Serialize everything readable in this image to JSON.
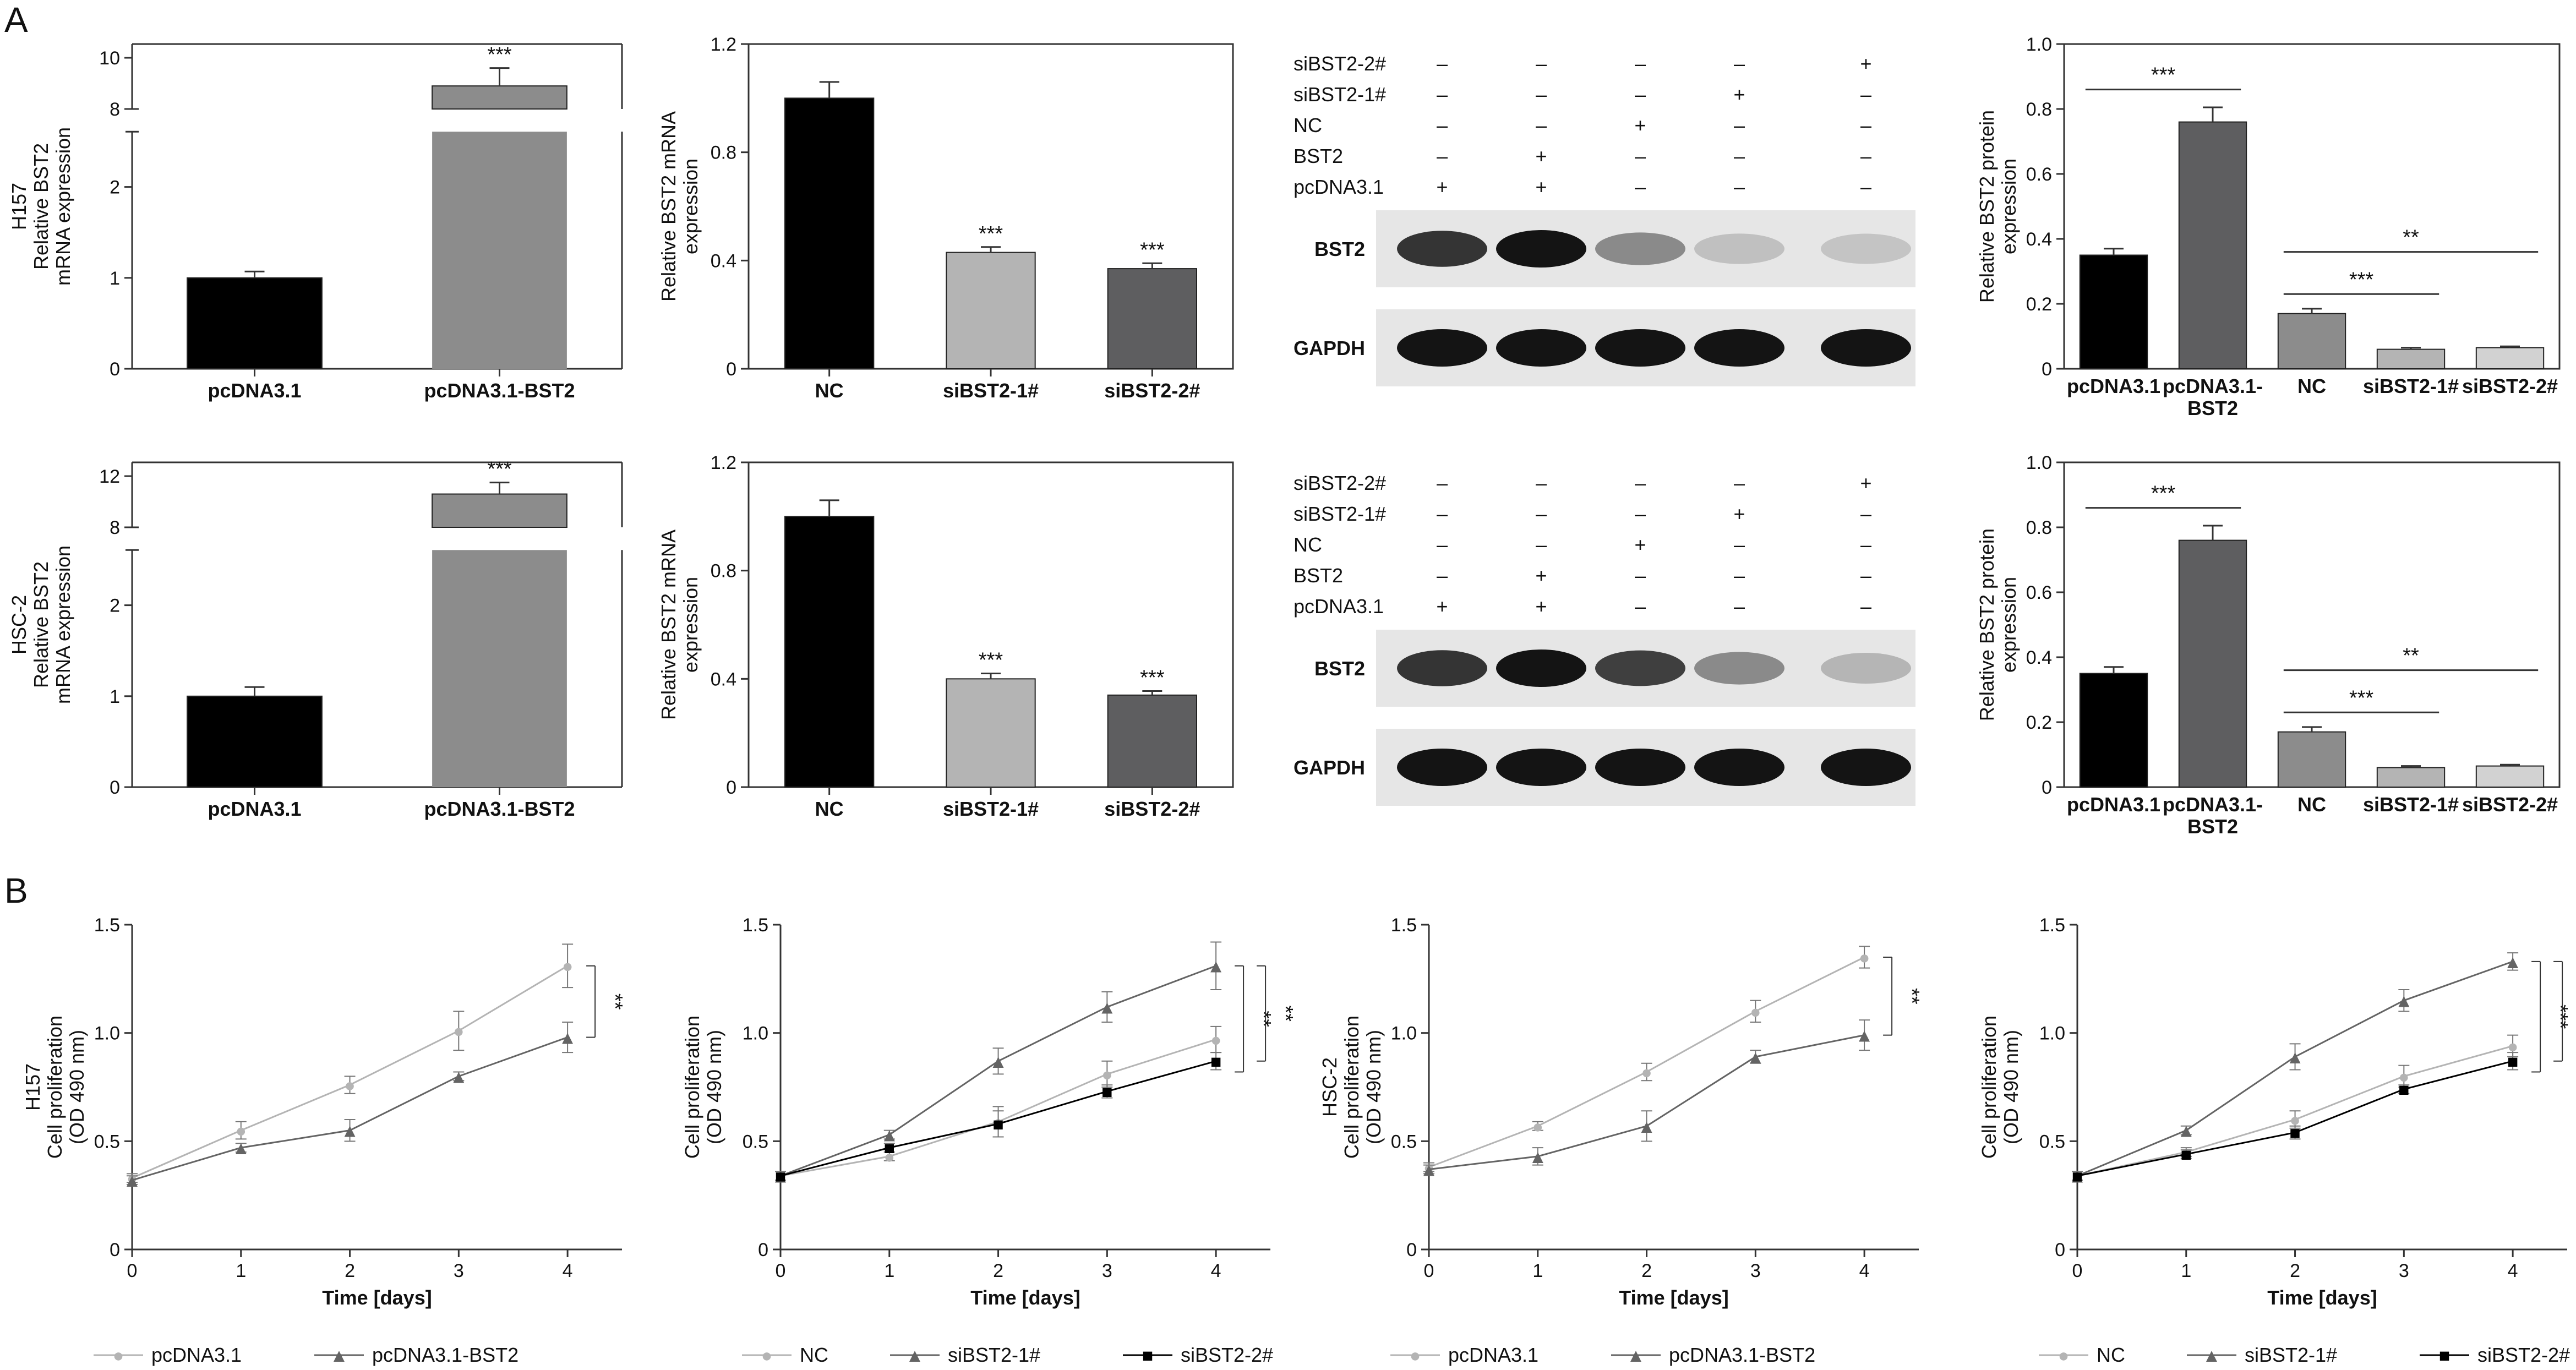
{
  "panel_labels": [
    "A",
    "B"
  ],
  "chart_data": [
    {
      "id": "a1",
      "type": "bar",
      "ylabel_lines": [
        "H157",
        "Relative BST2",
        "mRNA expression"
      ],
      "categories": [
        "pcDNA3.1",
        "pcDNA3.1-BST2"
      ],
      "values": [
        1.0,
        8.9
      ],
      "errors": [
        0.07,
        0.7
      ],
      "colors": [
        "#000000",
        "#8c8c8c"
      ],
      "yticks": [
        "0",
        "1",
        "2",
        "8",
        "10"
      ],
      "axis_break": true,
      "annotations": [
        {
          "bar": 1,
          "text": "***"
        }
      ]
    },
    {
      "id": "a2",
      "type": "bar",
      "ylabel_lines": [
        "Relative BST2 mRNA",
        "expression"
      ],
      "categories": [
        "NC",
        "siBST2-1#",
        "siBST2-2#"
      ],
      "values": [
        1.0,
        0.43,
        0.37
      ],
      "errors": [
        0.06,
        0.02,
        0.02
      ],
      "colors": [
        "#000000",
        "#b4b4b4",
        "#5e5e60"
      ],
      "yticks": [
        "0",
        "0.4",
        "0.8",
        "1.2"
      ],
      "ylim": [
        0,
        1.2
      ],
      "annotations": [
        {
          "bar": 1,
          "text": "***"
        },
        {
          "bar": 2,
          "text": "***"
        }
      ]
    },
    {
      "id": "a3",
      "type": "bar",
      "ylabel_lines": [
        "Relative BST2 protein",
        "expression"
      ],
      "categories": [
        "pcDNA3.1",
        "pcDNA3.1-\nBST2",
        "NC",
        "siBST2-1#",
        "siBST2-2#"
      ],
      "values": [
        0.35,
        0.76,
        0.17,
        0.06,
        0.065
      ],
      "errors": [
        0.02,
        0.045,
        0.015,
        0.005,
        0.004
      ],
      "colors": [
        "#000000",
        "#5e5e60",
        "#8c8c8c",
        "#b4b4b4",
        "#d2d2d2"
      ],
      "yticks": [
        "0",
        "0.2",
        "0.4",
        "0.6",
        "0.8",
        "1.0"
      ],
      "ylim": [
        0,
        1.0
      ],
      "brackets": [
        {
          "from": 0,
          "to": 1,
          "y": 0.86,
          "text": "***"
        },
        {
          "from": 2,
          "to": 3,
          "y": 0.23,
          "text": "***"
        },
        {
          "from": 2,
          "to": 4,
          "y": 0.36,
          "text": "**"
        }
      ]
    },
    {
      "id": "a4",
      "type": "bar",
      "ylabel_lines": [
        "HSC-2",
        "Relative BST2",
        "mRNA expression"
      ],
      "categories": [
        "pcDNA3.1",
        "pcDNA3.1-BST2"
      ],
      "values": [
        1.0,
        10.6
      ],
      "errors": [
        0.1,
        0.9
      ],
      "colors": [
        "#000000",
        "#8c8c8c"
      ],
      "yticks": [
        "0",
        "1",
        "2",
        "8",
        "12"
      ],
      "axis_break": true,
      "annotations": [
        {
          "bar": 1,
          "text": "***"
        }
      ]
    },
    {
      "id": "a5",
      "type": "bar",
      "ylabel_lines": [
        "Relative BST2 mRNA",
        "expression"
      ],
      "categories": [
        "NC",
        "siBST2-1#",
        "siBST2-2#"
      ],
      "values": [
        1.0,
        0.4,
        0.34
      ],
      "errors": [
        0.06,
        0.02,
        0.015
      ],
      "colors": [
        "#000000",
        "#b4b4b4",
        "#5e5e60"
      ],
      "yticks": [
        "0",
        "0.4",
        "0.8",
        "1.2"
      ],
      "ylim": [
        0,
        1.2
      ],
      "annotations": [
        {
          "bar": 1,
          "text": "***"
        },
        {
          "bar": 2,
          "text": "***"
        }
      ]
    },
    {
      "id": "a6",
      "type": "bar",
      "ylabel_lines": [
        "Relative BST2 protein",
        "expression"
      ],
      "categories": [
        "pcDNA3.1",
        "pcDNA3.1-\nBST2",
        "NC",
        "siBST2-1#",
        "siBST2-2#"
      ],
      "values": [
        0.35,
        0.76,
        0.17,
        0.06,
        0.065
      ],
      "errors": [
        0.02,
        0.045,
        0.015,
        0.005,
        0.004
      ],
      "colors": [
        "#000000",
        "#5e5e60",
        "#8c8c8c",
        "#b4b4b4",
        "#d2d2d2"
      ],
      "yticks": [
        "0",
        "0.2",
        "0.4",
        "0.6",
        "0.8",
        "1.0"
      ],
      "ylim": [
        0,
        1.0
      ],
      "brackets": [
        {
          "from": 0,
          "to": 1,
          "y": 0.86,
          "text": "***"
        },
        {
          "from": 2,
          "to": 3,
          "y": 0.23,
          "text": "***"
        },
        {
          "from": 2,
          "to": 4,
          "y": 0.36,
          "text": "**"
        }
      ]
    },
    {
      "id": "b1",
      "type": "line",
      "ylabel_lines": [
        "H157",
        "Cell proliferation",
        "(OD 490 nm)"
      ],
      "xlabel": "Time [days]",
      "x": [
        0,
        1,
        2,
        3,
        4
      ],
      "xticks": [
        "0",
        "1",
        "2",
        "3",
        "4"
      ],
      "yticks": [
        "0",
        "0.5",
        "1.0",
        "1.5"
      ],
      "ylim": [
        0,
        1.5
      ],
      "series": [
        {
          "name": "pcDNA3.1",
          "marker": "circle",
          "color": "#b4b4b4",
          "values": [
            0.33,
            0.55,
            0.76,
            1.01,
            1.31
          ],
          "errors": [
            0.02,
            0.04,
            0.04,
            0.09,
            0.1
          ]
        },
        {
          "name": "pcDNA3.1-BST2",
          "marker": "triangle",
          "color": "#646464",
          "values": [
            0.32,
            0.47,
            0.55,
            0.8,
            0.98
          ],
          "errors": [
            0.02,
            0.02,
            0.05,
            0.02,
            0.07
          ]
        }
      ],
      "sig": [
        {
          "text": "**"
        }
      ]
    },
    {
      "id": "b2",
      "type": "line",
      "ylabel_lines": [
        "Cell proliferation",
        "(OD 490 nm)"
      ],
      "xlabel": "Time [days]",
      "x": [
        0,
        1,
        2,
        3,
        4
      ],
      "xticks": [
        "0",
        "1",
        "2",
        "3",
        "4"
      ],
      "yticks": [
        "0",
        "0.5",
        "1.0",
        "1.5"
      ],
      "ylim": [
        0,
        1.5
      ],
      "series": [
        {
          "name": "NC",
          "marker": "circle",
          "color": "#b4b4b4",
          "values": [
            0.34,
            0.43,
            0.59,
            0.81,
            0.97
          ],
          "errors": [
            0.02,
            0.02,
            0.07,
            0.06,
            0.06
          ]
        },
        {
          "name": "siBST2-1#",
          "marker": "triangle",
          "color": "#646464",
          "values": [
            0.34,
            0.53,
            0.87,
            1.12,
            1.31
          ],
          "errors": [
            0.02,
            0.02,
            0.06,
            0.07,
            0.11
          ]
        },
        {
          "name": "siBST2-2#",
          "marker": "square",
          "color": "#000000",
          "values": [
            0.34,
            0.47,
            0.58,
            0.73,
            0.87
          ],
          "errors": [
            0.02,
            0.02,
            0.06,
            0.03,
            0.04
          ]
        }
      ],
      "sig": [
        {
          "text": "**"
        },
        {
          "text": "**"
        }
      ]
    },
    {
      "id": "b3",
      "type": "line",
      "ylabel_lines": [
        "HSC-2",
        "Cell proliferation",
        "(OD 490 nm)"
      ],
      "xlabel": "Time [days]",
      "x": [
        0,
        1,
        2,
        3,
        4
      ],
      "xticks": [
        "0",
        "1",
        "2",
        "3",
        "4"
      ],
      "yticks": [
        "0",
        "0.5",
        "1.0",
        "1.5"
      ],
      "ylim": [
        0,
        1.5
      ],
      "series": [
        {
          "name": "pcDNA3.1",
          "marker": "circle",
          "color": "#b4b4b4",
          "values": [
            0.38,
            0.57,
            0.82,
            1.1,
            1.35
          ],
          "errors": [
            0.02,
            0.02,
            0.04,
            0.05,
            0.05
          ]
        },
        {
          "name": "pcDNA3.1-BST2",
          "marker": "triangle",
          "color": "#646464",
          "values": [
            0.37,
            0.43,
            0.57,
            0.89,
            0.99
          ],
          "errors": [
            0.02,
            0.04,
            0.07,
            0.03,
            0.07
          ]
        }
      ],
      "sig": [
        {
          "text": "**"
        }
      ]
    },
    {
      "id": "b4",
      "type": "line",
      "ylabel_lines": [
        "Cell proliferation",
        "(OD 490 nm)"
      ],
      "xlabel": "Time [days]",
      "x": [
        0,
        1,
        2,
        3,
        4
      ],
      "xticks": [
        "0",
        "1",
        "2",
        "3",
        "4"
      ],
      "yticks": [
        "0",
        "0.5",
        "1.0",
        "1.5"
      ],
      "ylim": [
        0,
        1.5
      ],
      "series": [
        {
          "name": "NC",
          "marker": "circle",
          "color": "#b4b4b4",
          "values": [
            0.34,
            0.45,
            0.6,
            0.8,
            0.94
          ],
          "errors": [
            0.02,
            0.02,
            0.04,
            0.05,
            0.05
          ]
        },
        {
          "name": "siBST2-1#",
          "marker": "triangle",
          "color": "#646464",
          "values": [
            0.34,
            0.55,
            0.89,
            1.15,
            1.33
          ],
          "errors": [
            0.02,
            0.02,
            0.06,
            0.05,
            0.04
          ]
        },
        {
          "name": "siBST2-2#",
          "marker": "square",
          "color": "#000000",
          "values": [
            0.34,
            0.44,
            0.54,
            0.74,
            0.87
          ],
          "errors": [
            0.02,
            0.02,
            0.03,
            0.02,
            0.04
          ]
        }
      ],
      "sig": [
        {
          "text": "***"
        },
        {
          "text": "***"
        }
      ]
    }
  ],
  "blots": [
    {
      "id": "w1",
      "rows": [
        "siBST2-2#",
        "siBST2-1#",
        "NC",
        "BST2",
        "pcDNA3.1"
      ],
      "signs": [
        [
          "–",
          "–",
          "–",
          "–",
          "+"
        ],
        [
          "–",
          "–",
          "–",
          "+",
          "–"
        ],
        [
          "–",
          "–",
          "+",
          "–",
          "–"
        ],
        [
          "–",
          "+",
          "–",
          "–",
          "–"
        ],
        [
          "+",
          "+",
          "–",
          "–",
          "–"
        ]
      ],
      "bands": [
        "BST2",
        "GAPDH"
      ],
      "bst2_intensity": [
        0.85,
        1.0,
        0.45,
        0.2,
        0.18
      ],
      "gapdh_intensity": [
        1.0,
        1.0,
        1.0,
        1.0,
        1.0
      ]
    },
    {
      "id": "w2",
      "rows": [
        "siBST2-2#",
        "siBST2-1#",
        "NC",
        "BST2",
        "pcDNA3.1"
      ],
      "signs": [
        [
          "–",
          "–",
          "–",
          "–",
          "+"
        ],
        [
          "–",
          "–",
          "–",
          "+",
          "–"
        ],
        [
          "–",
          "–",
          "+",
          "–",
          "–"
        ],
        [
          "–",
          "+",
          "–",
          "–",
          "–"
        ],
        [
          "+",
          "+",
          "–",
          "–",
          "–"
        ]
      ],
      "bands": [
        "BST2",
        "GAPDH"
      ],
      "bst2_intensity": [
        0.85,
        1.0,
        0.8,
        0.45,
        0.25
      ],
      "gapdh_intensity": [
        1.0,
        1.0,
        1.0,
        1.0,
        1.0
      ]
    }
  ]
}
